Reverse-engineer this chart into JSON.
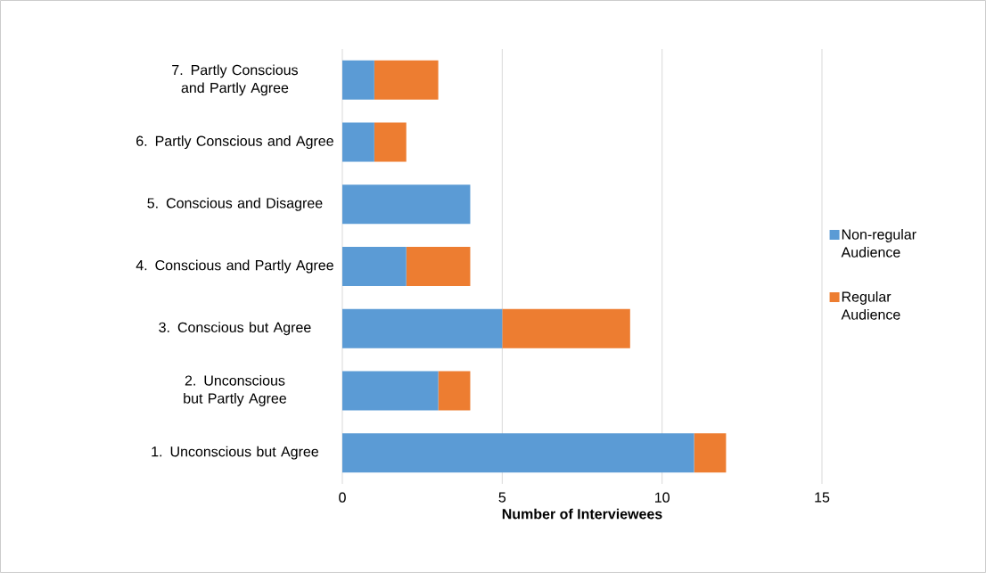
{
  "chart_data": {
    "type": "bar",
    "orientation": "horizontal",
    "stacked": true,
    "xlabel": "Number of Interviewees",
    "categories": [
      "7. Partly Conscious and Partly Agree",
      "6. Partly Conscious and Agree",
      "5. Conscious and Disagree",
      "4. Conscious and Partly Agree",
      "3. Conscious but Agree",
      "2. Unconscious but Partly Agree",
      "1. Unconscious but Agree"
    ],
    "series": [
      {
        "name": "Non-regular Audience",
        "color": "#5b9bd5",
        "values": [
          1,
          1,
          4,
          2,
          5,
          3,
          11
        ]
      },
      {
        "name": "Regular Audience",
        "color": "#ed7d31",
        "values": [
          2,
          1,
          0,
          2,
          4,
          1,
          1
        ]
      }
    ],
    "xlim": [
      0,
      15
    ],
    "xticks": [
      0,
      5,
      10,
      15
    ],
    "grid": "x",
    "legend": "right"
  }
}
